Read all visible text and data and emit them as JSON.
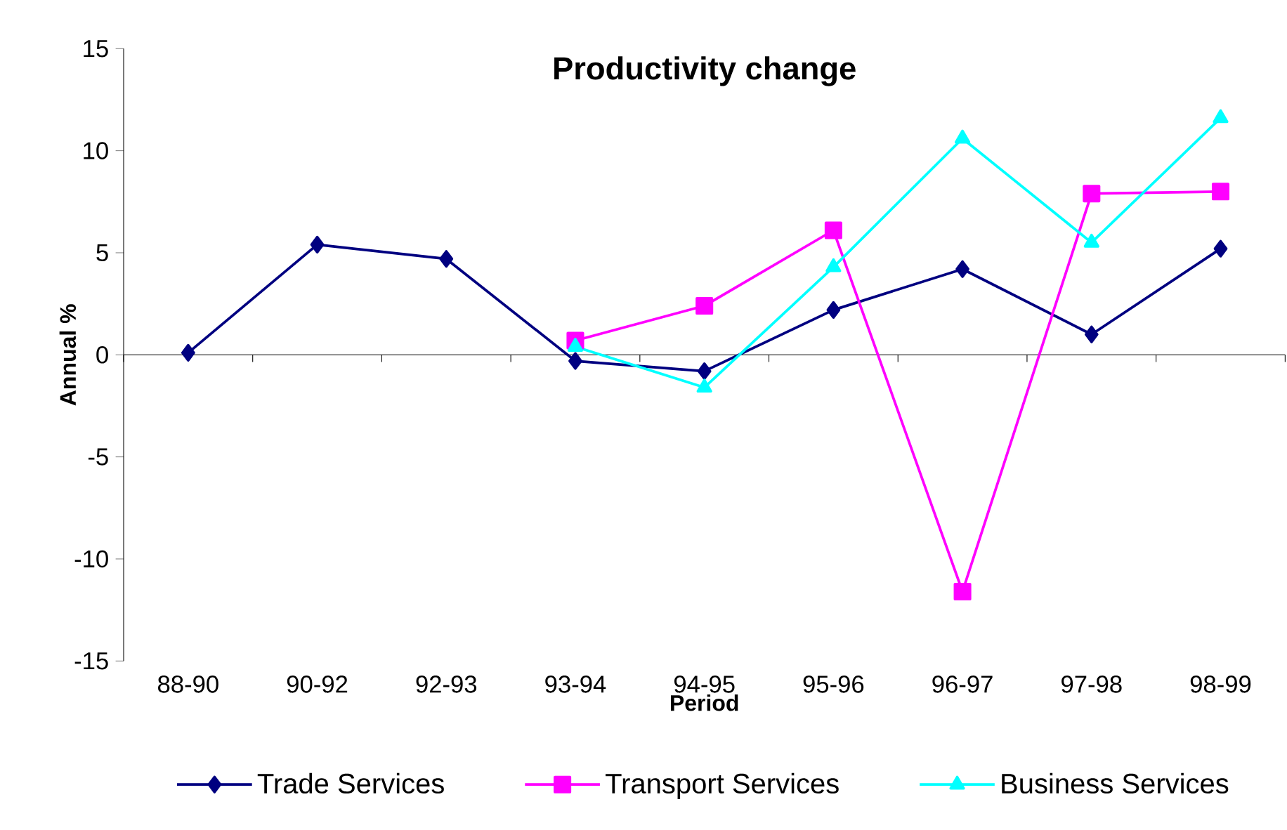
{
  "chart_data": {
    "type": "line",
    "title": "Productivity change",
    "xlabel": "Period",
    "ylabel": "Annual %",
    "categories": [
      "88-90",
      "90-92",
      "92-93",
      "93-94",
      "94-95",
      "95-96",
      "96-97",
      "97-98",
      "98-99"
    ],
    "ylim": [
      -15,
      15
    ],
    "yticks": [
      -15,
      -10,
      -5,
      0,
      5,
      10,
      15
    ],
    "legend": "bottom",
    "ref_lines": [
      {
        "axis": "y",
        "value": 0,
        "color": "#000000"
      }
    ],
    "series": [
      {
        "name": "Trade Services",
        "color": "#000080",
        "marker": "diamond",
        "values": [
          0.1,
          5.4,
          4.7,
          -0.3,
          -0.8,
          2.2,
          4.2,
          1.0,
          5.2
        ]
      },
      {
        "name": "Transport Services",
        "color": "#ff00ff",
        "marker": "square",
        "values": [
          null,
          null,
          null,
          0.7,
          2.4,
          6.1,
          -11.6,
          7.9,
          8.0
        ]
      },
      {
        "name": "Business Services",
        "color": "#00ffff",
        "marker": "triangle",
        "values": [
          null,
          null,
          null,
          0.4,
          -1.6,
          4.3,
          10.6,
          5.5,
          11.6
        ]
      }
    ]
  }
}
